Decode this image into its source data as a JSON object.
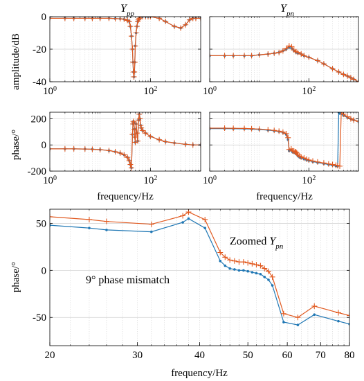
{
  "figure": {
    "colors": {
      "blue": "#1f77b4",
      "orange": "#e1591f",
      "grid": "#cfcfcf",
      "axis": "#000000"
    }
  },
  "chart_data": [
    {
      "id": "ypp-amp",
      "type": "line",
      "title": {
        "base": "Y",
        "sub": "pp"
      },
      "ylabel": "amplitude/dB",
      "xlabel": "",
      "xscale": "log",
      "xlim": [
        1,
        1000
      ],
      "ylim": [
        -40,
        0
      ],
      "xticks": [
        1,
        100
      ],
      "xticklabels": [
        {
          "base": "10",
          "exp": "0"
        },
        {
          "base": "10",
          "exp": "2"
        }
      ],
      "yticks": [
        0,
        -20,
        -40
      ],
      "yticklabels": [
        "0",
        "-20",
        "-40"
      ],
      "grid": true,
      "series": [
        {
          "color": "blue",
          "marker": "dot",
          "x": [
            1,
            2,
            3,
            5,
            7,
            10,
            15,
            20,
            25,
            30,
            35,
            38,
            40,
            42,
            44,
            45,
            46,
            47,
            48,
            49,
            50,
            52,
            54,
            56,
            58,
            60,
            65,
            70,
            80,
            90,
            100,
            150,
            200,
            300,
            400,
            500,
            600,
            700,
            800,
            1000
          ],
          "y": [
            -1,
            -1,
            -1,
            -1,
            -1,
            -1,
            -1,
            -1.2,
            -1.3,
            -1.6,
            -2.3,
            -3,
            -6,
            -12,
            -20,
            -28,
            -34,
            -37,
            -34,
            -28,
            -18,
            -10,
            -6,
            -3,
            -2,
            -1,
            0,
            0,
            0,
            0,
            0,
            -1,
            -3,
            -6,
            -7,
            -5,
            -2,
            -1,
            -1,
            -1
          ]
        },
        {
          "color": "orange",
          "marker": "plus",
          "x": [
            1,
            2,
            3,
            5,
            7,
            10,
            15,
            20,
            25,
            30,
            35,
            38,
            40,
            42,
            44,
            45,
            46,
            47,
            48,
            49,
            50,
            52,
            54,
            56,
            58,
            60,
            65,
            70,
            80,
            90,
            100,
            150,
            200,
            300,
            400,
            500,
            600,
            700,
            800,
            1000
          ],
          "y": [
            -1,
            -1,
            -1,
            -1,
            -1,
            -1,
            -1,
            -1.2,
            -1.3,
            -1.6,
            -2.3,
            -3,
            -6,
            -12,
            -20,
            -28,
            -34,
            -37,
            -34,
            -28,
            -18,
            -10,
            -6,
            -3,
            -2,
            -1,
            0,
            0,
            0,
            0,
            0,
            -1,
            -3,
            -6,
            -7,
            -5,
            -2,
            -1,
            -1,
            -1
          ]
        }
      ]
    },
    {
      "id": "ypn-amp",
      "type": "line",
      "title": {
        "base": "Y",
        "sub": "pn"
      },
      "ylabel": "",
      "xlabel": "",
      "xscale": "log",
      "xlim": [
        1,
        1000
      ],
      "ylim": [
        -40,
        0
      ],
      "xticks": [
        1,
        100
      ],
      "xticklabels": [
        {
          "base": "10",
          "exp": "0"
        },
        {
          "base": "10",
          "exp": "2"
        }
      ],
      "yticks": [
        0,
        -20,
        -40
      ],
      "yticklabels": [
        "0",
        "-20",
        "-40"
      ],
      "grid": true,
      "series": [
        {
          "color": "blue",
          "marker": "dot",
          "x": [
            1,
            2,
            3,
            5,
            7,
            10,
            15,
            20,
            25,
            30,
            35,
            40,
            45,
            50,
            55,
            60,
            70,
            80,
            100,
            150,
            200,
            300,
            400,
            500,
            600,
            700,
            800,
            1000
          ],
          "y": [
            -24,
            -24,
            -24,
            -24,
            -24,
            -23.5,
            -23,
            -22.5,
            -22,
            -21,
            -20,
            -19,
            -19.5,
            -21,
            -22,
            -22.5,
            -23,
            -24,
            -25,
            -27,
            -29,
            -32,
            -34,
            -35.5,
            -36.5,
            -37.5,
            -38.5,
            -40
          ]
        },
        {
          "color": "orange",
          "marker": "plus",
          "x": [
            1,
            2,
            3,
            5,
            7,
            10,
            15,
            20,
            25,
            30,
            35,
            40,
            45,
            50,
            55,
            60,
            70,
            80,
            100,
            150,
            200,
            300,
            400,
            500,
            600,
            700,
            800,
            1000
          ],
          "y": [
            -24,
            -24,
            -24,
            -24,
            -24,
            -23.5,
            -23,
            -22.5,
            -22,
            -21,
            -19.5,
            -18,
            -18.5,
            -20.5,
            -21.5,
            -22,
            -23,
            -24,
            -25,
            -27,
            -29,
            -32,
            -34,
            -35.5,
            -36.5,
            -37.5,
            -38.5,
            -40
          ]
        }
      ]
    },
    {
      "id": "ypp-phase",
      "type": "line",
      "title": null,
      "ylabel": "phase/°",
      "xlabel": "frequency/Hz",
      "xscale": "log",
      "xlim": [
        1,
        1000
      ],
      "ylim": [
        -200,
        250
      ],
      "xticks": [
        1,
        100
      ],
      "xticklabels": [
        {
          "base": "10",
          "exp": "0"
        },
        {
          "base": "10",
          "exp": "2"
        }
      ],
      "yticks": [
        200,
        0,
        -200
      ],
      "yticklabels": [
        "200",
        "0",
        "-200"
      ],
      "grid": true,
      "series": [
        {
          "color": "blue",
          "marker": "dot",
          "x": [
            1,
            2,
            3,
            5,
            7,
            10,
            15,
            20,
            25,
            30,
            35,
            38,
            40,
            42,
            44,
            45,
            46,
            47,
            48,
            49,
            50,
            52,
            54,
            56,
            58,
            60,
            62,
            64,
            66,
            70,
            80,
            100,
            150,
            200,
            300,
            500,
            700,
            1000
          ],
          "y": [
            -30,
            -30,
            -30,
            -31,
            -33,
            -36,
            -43,
            -52,
            -62,
            -75,
            -95,
            -120,
            -150,
            -175,
            80,
            160,
            180,
            170,
            120,
            60,
            20,
            160,
            90,
            30,
            190,
            235,
            200,
            150,
            130,
            110,
            90,
            65,
            40,
            25,
            15,
            5,
            0,
            0
          ]
        },
        {
          "color": "orange",
          "marker": "plus",
          "x": [
            1,
            2,
            3,
            5,
            7,
            10,
            15,
            20,
            25,
            30,
            35,
            38,
            40,
            42,
            44,
            45,
            46,
            47,
            48,
            49,
            50,
            52,
            54,
            56,
            58,
            60,
            62,
            64,
            66,
            70,
            80,
            100,
            150,
            200,
            300,
            500,
            700,
            1000
          ],
          "y": [
            -30,
            -30,
            -30,
            -31,
            -33,
            -36,
            -43,
            -52,
            -62,
            -75,
            -95,
            -120,
            -150,
            -175,
            80,
            160,
            180,
            170,
            120,
            60,
            20,
            160,
            90,
            30,
            190,
            235,
            200,
            150,
            130,
            110,
            90,
            65,
            40,
            25,
            15,
            5,
            0,
            0
          ]
        }
      ]
    },
    {
      "id": "ypn-phase",
      "type": "line",
      "title": null,
      "ylabel": "",
      "xlabel": "frequency/Hz",
      "xscale": "log",
      "xlim": [
        1,
        1000
      ],
      "ylim": [
        -200,
        250
      ],
      "xticks": [
        1,
        100
      ],
      "xticklabels": [
        {
          "base": "10",
          "exp": "0"
        },
        {
          "base": "10",
          "exp": "2"
        }
      ],
      "yticks": [
        200,
        0,
        -200
      ],
      "yticklabels": [
        "200",
        "0",
        "-200"
      ],
      "grid": true,
      "series": [
        {
          "color": "blue",
          "marker": "dot",
          "x": [
            1,
            2,
            3,
            5,
            7,
            10,
            15,
            20,
            25,
            30,
            35,
            38,
            40,
            44,
            47,
            50,
            53,
            55,
            57,
            60,
            65,
            70,
            80,
            90,
            100,
            120,
            150,
            200,
            250,
            300,
            350,
            380,
            400,
            420,
            500,
            600,
            700,
            800,
            1000
          ],
          "y": [
            125,
            125,
            124,
            123,
            121,
            118,
            113,
            108,
            102,
            95,
            80,
            40,
            -45,
            -40,
            -55,
            -58,
            -62,
            -65,
            -72,
            -85,
            -95,
            -100,
            -108,
            -115,
            -120,
            -128,
            -135,
            -143,
            -150,
            -155,
            -160,
            -162,
            250,
            240,
            225,
            210,
            200,
            190,
            180
          ]
        },
        {
          "color": "orange",
          "marker": "plus",
          "x": [
            1,
            2,
            3,
            5,
            7,
            10,
            15,
            20,
            25,
            30,
            35,
            38,
            40,
            44,
            47,
            50,
            53,
            55,
            57,
            60,
            65,
            70,
            80,
            90,
            100,
            120,
            150,
            200,
            250,
            300,
            350,
            380,
            420,
            450,
            500,
            600,
            700,
            800,
            1000
          ],
          "y": [
            128,
            128,
            127,
            126,
            124,
            121,
            116,
            111,
            105,
            98,
            86,
            55,
            -35,
            -30,
            -45,
            -48,
            -52,
            -55,
            -62,
            -75,
            -85,
            -92,
            -100,
            -108,
            -115,
            -123,
            -130,
            -138,
            -145,
            -150,
            -155,
            -158,
            -162,
            250,
            235,
            215,
            200,
            190,
            180
          ]
        }
      ]
    },
    {
      "id": "zoomed",
      "type": "line",
      "title": null,
      "ylabel": "phase/°",
      "xlabel": "frequency/Hz",
      "xscale": "log",
      "xlim": [
        20,
        80
      ],
      "ylim": [
        -80,
        65
      ],
      "xticks": [
        20,
        30,
        40,
        50,
        60,
        70,
        80
      ],
      "xticklabels": [
        "20",
        "30",
        "40",
        "50",
        "60",
        "70",
        "80"
      ],
      "yticks": [
        50,
        0,
        -50
      ],
      "yticklabels": [
        "50",
        "0",
        "-50"
      ],
      "grid": true,
      "annotations": [
        {
          "kind": "zoom",
          "text": "Zoomed ",
          "base": "Y",
          "sub": "pn"
        },
        {
          "kind": "mismatch",
          "text": "9° phase mismatch"
        }
      ],
      "series": [
        {
          "color": "blue",
          "marker": "dot",
          "x": [
            20,
            24,
            26,
            32,
            37,
            38,
            41,
            44,
            45,
            46,
            47,
            48,
            49,
            50,
            51,
            52,
            53,
            54,
            55,
            56,
            59,
            63,
            68,
            76,
            80
          ],
          "y": [
            48,
            45,
            43,
            41,
            51,
            55,
            45,
            10,
            5,
            2,
            1,
            0,
            0,
            -1,
            -2,
            -3,
            -4,
            -7,
            -10,
            -16,
            -55,
            -58,
            -47,
            -54,
            -57
          ]
        },
        {
          "color": "orange",
          "marker": "plus",
          "x": [
            20,
            24,
            26,
            32,
            37,
            38,
            41,
            44,
            45,
            46,
            47,
            48,
            49,
            50,
            51,
            52,
            53,
            54,
            55,
            56,
            59,
            63,
            68,
            76,
            80
          ],
          "y": [
            57,
            54,
            52,
            49,
            58,
            62,
            54,
            19,
            14,
            11,
            10,
            9,
            9,
            8,
            7,
            6,
            5,
            2,
            -1,
            -7,
            -46,
            -50,
            -38,
            -45,
            -48
          ]
        }
      ]
    }
  ]
}
